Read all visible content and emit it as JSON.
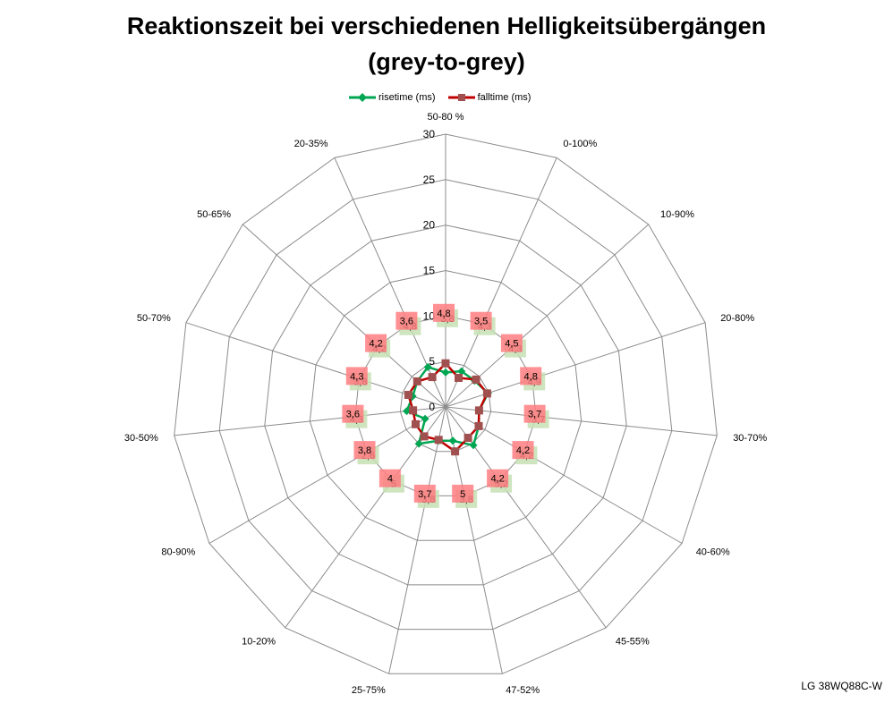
{
  "chart_data": {
    "type": "radar",
    "title": "Reaktionszeit bei verschiedenen Helligkeitsübergängen",
    "subtitle": "(grey-to-grey)",
    "categories": [
      "50-80 %",
      "0-100%",
      "10-90%",
      "20-80%",
      "30-70%",
      "40-60%",
      "45-55%",
      "47-52%",
      "25-75%",
      "10-20%",
      "80-90%",
      "30-50%",
      "50-70%",
      "50-65%",
      "20-35%"
    ],
    "rlim": [
      0,
      30
    ],
    "rticks": [
      0,
      5,
      10,
      15,
      20,
      25,
      30
    ],
    "grid": true,
    "legend_position": "top",
    "series": [
      {
        "name": "risetime (ms)",
        "color": "#00a651",
        "label_bg": "#c6e0b4",
        "marker": "diamond",
        "values": [
          3.8,
          4.3,
          4.3,
          4.9,
          3.7,
          4.2,
          5.2,
          3.8,
          3.8,
          5,
          2.6,
          4.3,
          3.8,
          4.2,
          4.8
        ],
        "labels": [
          "3,8",
          "4,3",
          "4,3",
          "4,9",
          "3,7",
          "4,2",
          "5,2",
          "3,8",
          "3,8",
          "5",
          "2,6",
          "4,3",
          "3,8",
          "4,2",
          "4,8"
        ]
      },
      {
        "name": "falltime (ms)",
        "color": "#c00000",
        "label_bg": "#ff7c80",
        "marker": "square",
        "values": [
          4.8,
          3.5,
          4.5,
          4.8,
          3.7,
          4.2,
          4.2,
          5,
          3.7,
          4,
          3.8,
          3.6,
          4.3,
          4.2,
          3.6
        ],
        "labels": [
          "4,8",
          "3,5",
          "4,5",
          "4,8",
          "3,7",
          "4,2",
          "4,2",
          "5",
          "3,7",
          "4",
          "3,8",
          "3,6",
          "4,3",
          "4,2",
          "3,6"
        ]
      }
    ]
  },
  "watermark": "LG 38WQ88C-W"
}
